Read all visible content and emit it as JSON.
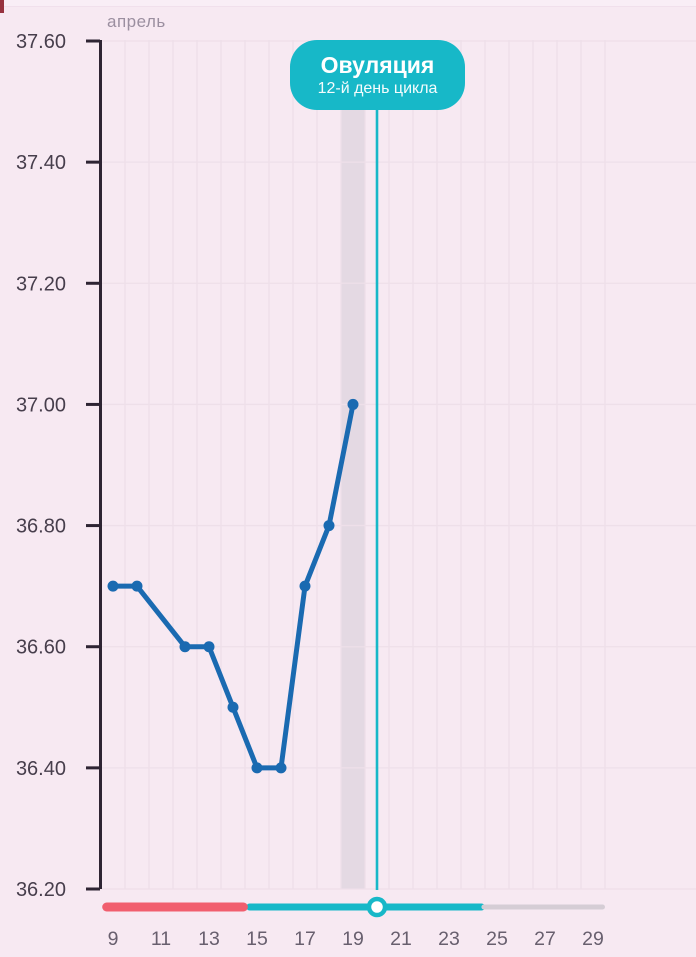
{
  "month_label": "апрель",
  "tooltip": {
    "title": "Овуляция",
    "subtitle": "12-й день цикла"
  },
  "colors": {
    "background": "#f7e9f2",
    "grid": "#eedfe9",
    "band": "#e4d9e3",
    "axis": "#2e2433",
    "y_tick_label": "#473e4c",
    "x_tick_label": "#685f6e",
    "month_label": "#9b8fa0",
    "line": "#1a6ab1",
    "teal": "#17b8c8",
    "red": "#f15e6e",
    "gray": "#d5cdd5",
    "thumb_fill": "#ffffff"
  },
  "chart_data": {
    "type": "line",
    "title": "",
    "xlabel": "",
    "ylabel": "",
    "x": [
      9,
      10,
      12,
      13,
      14,
      15,
      16,
      17,
      18,
      19
    ],
    "values": [
      36.7,
      36.7,
      36.6,
      36.6,
      36.5,
      36.4,
      36.4,
      36.7,
      36.8,
      37.0
    ],
    "y_tick_labels": [
      "37.60",
      "37.40",
      "37.20",
      "37.00",
      "36.80",
      "36.60",
      "36.40",
      "36.20"
    ],
    "x_tick_labels": [
      "9",
      "11",
      "13",
      "15",
      "17",
      "19",
      "21",
      "23",
      "25",
      "27",
      "29"
    ],
    "ylim": [
      36.2,
      37.6
    ],
    "xlim": [
      8.5,
      29.5
    ],
    "grid": "on",
    "month": "апрель",
    "ovulation_marker_day": 20,
    "highlight_band_days": [
      18.5,
      19.5
    ],
    "annotations": [
      "Овуляция",
      "12-й день цикла"
    ]
  },
  "slider": {
    "segments": [
      {
        "color_key": "teal",
        "from_day": 14.55,
        "to_day": 24.5,
        "thickness": 7
      },
      {
        "color_key": "gray",
        "from_day": 24.35,
        "to_day": 29.5,
        "thickness": 5
      },
      {
        "color_key": "red",
        "from_day": 8.55,
        "to_day": 14.62,
        "thickness": 9
      }
    ],
    "thumb_day": 20
  }
}
